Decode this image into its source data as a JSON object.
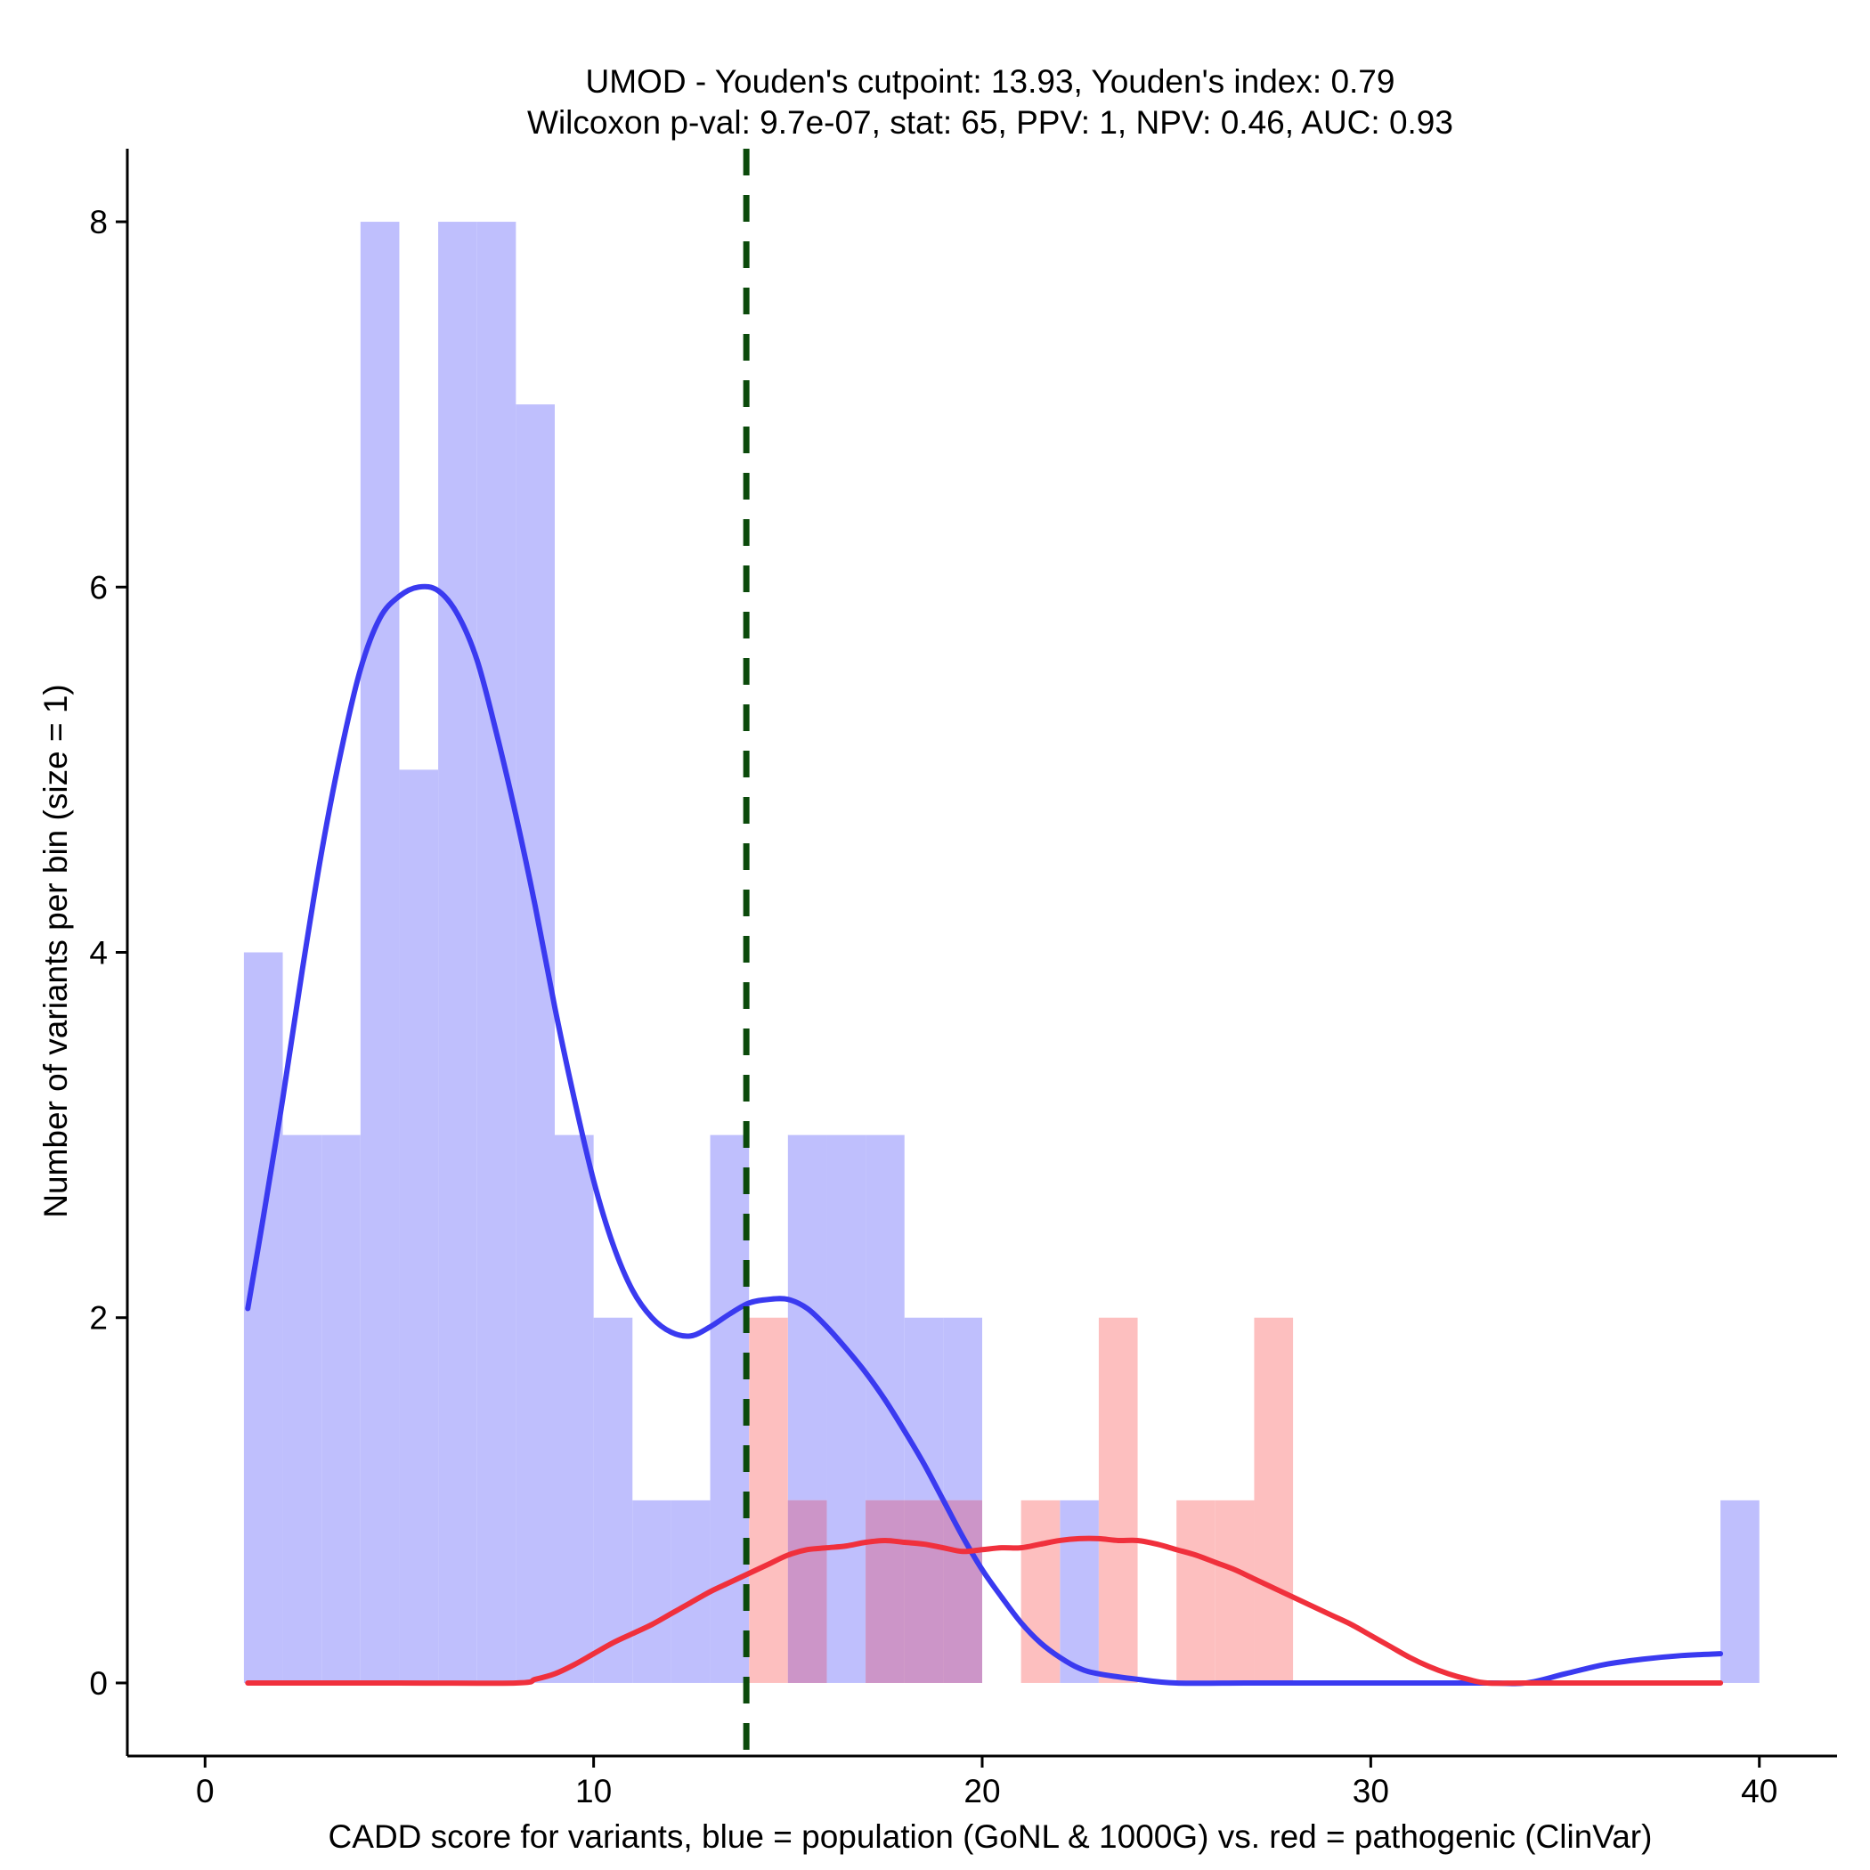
{
  "chart_data": {
    "type": "histogram",
    "title_line1": "UMOD - Youden's cutpoint: 13.93, Youden's index: 0.79",
    "title_line2": "Wilcoxon p-val: 9.7e-07, stat: 65, PPV: 1, NPV: 0.46, AUC: 0.93",
    "xlabel": "CADD score for variants, blue = population (GoNL & 1000G) vs. red = pathogenic (ClinVar)",
    "ylabel": "Number of variants per bin (size = 1)",
    "xlim": [
      -2.0,
      42.0
    ],
    "ylim": [
      -0.4,
      8.4
    ],
    "x_ticks": [
      0,
      10,
      20,
      30,
      40
    ],
    "y_ticks": [
      0,
      2,
      4,
      6,
      8
    ],
    "bin_width": 1,
    "cutpoint": 13.93,
    "colors": {
      "population_bar": "#bfbffd",
      "pathogenic_bar": "#fdbfbf",
      "overlap_bar": "#cc95c8",
      "population_line": "#3a3af0",
      "pathogenic_line": "#f0303c",
      "cutpoint_line": "#0b4a0b"
    },
    "series": [
      {
        "name": "population (GoNL & 1000G)",
        "bins": [
          {
            "start": 1,
            "count": 4
          },
          {
            "start": 2,
            "count": 3
          },
          {
            "start": 3,
            "count": 3
          },
          {
            "start": 4,
            "count": 8
          },
          {
            "start": 5,
            "count": 5
          },
          {
            "start": 6,
            "count": 8
          },
          {
            "start": 7,
            "count": 8
          },
          {
            "start": 8,
            "count": 7
          },
          {
            "start": 9,
            "count": 3
          },
          {
            "start": 10,
            "count": 2
          },
          {
            "start": 11,
            "count": 1
          },
          {
            "start": 12,
            "count": 1
          },
          {
            "start": 13,
            "count": 3
          },
          {
            "start": 15,
            "count": 3
          },
          {
            "start": 16,
            "count": 3
          },
          {
            "start": 17,
            "count": 3
          },
          {
            "start": 18,
            "count": 2
          },
          {
            "start": 19,
            "count": 2
          },
          {
            "start": 22,
            "count": 1
          },
          {
            "start": 39,
            "count": 1
          }
        ]
      },
      {
        "name": "pathogenic (ClinVar)",
        "bins": [
          {
            "start": 14,
            "count": 2
          },
          {
            "start": 15,
            "count": 1
          },
          {
            "start": 17,
            "count": 1
          },
          {
            "start": 18,
            "count": 1
          },
          {
            "start": 19,
            "count": 1
          },
          {
            "start": 21,
            "count": 1
          },
          {
            "start": 23,
            "count": 2
          },
          {
            "start": 25,
            "count": 1
          },
          {
            "start": 26,
            "count": 1
          },
          {
            "start": 27,
            "count": 2
          }
        ]
      }
    ],
    "density_lines": [
      {
        "name": "population density",
        "points": [
          [
            1.1,
            2.05
          ],
          [
            1.5,
            2.55
          ],
          [
            2,
            3.2
          ],
          [
            2.5,
            3.9
          ],
          [
            3,
            4.55
          ],
          [
            3.5,
            5.1
          ],
          [
            4,
            5.55
          ],
          [
            4.5,
            5.83
          ],
          [
            5,
            5.95
          ],
          [
            5.5,
            6.0
          ],
          [
            6,
            5.98
          ],
          [
            6.5,
            5.85
          ],
          [
            7,
            5.6
          ],
          [
            7.5,
            5.2
          ],
          [
            8,
            4.75
          ],
          [
            8.5,
            4.25
          ],
          [
            9,
            3.7
          ],
          [
            9.5,
            3.2
          ],
          [
            10,
            2.75
          ],
          [
            10.5,
            2.4
          ],
          [
            11,
            2.15
          ],
          [
            11.5,
            2.0
          ],
          [
            12,
            1.92
          ],
          [
            12.5,
            1.9
          ],
          [
            13,
            1.95
          ],
          [
            13.5,
            2.02
          ],
          [
            14,
            2.08
          ],
          [
            14.5,
            2.1
          ],
          [
            15,
            2.1
          ],
          [
            15.5,
            2.05
          ],
          [
            16,
            1.95
          ],
          [
            16.5,
            1.83
          ],
          [
            17,
            1.7
          ],
          [
            17.5,
            1.55
          ],
          [
            18,
            1.38
          ],
          [
            18.5,
            1.2
          ],
          [
            19,
            1.0
          ],
          [
            19.5,
            0.8
          ],
          [
            20,
            0.62
          ],
          [
            20.5,
            0.47
          ],
          [
            21,
            0.33
          ],
          [
            21.5,
            0.22
          ],
          [
            22,
            0.14
          ],
          [
            22.5,
            0.08
          ],
          [
            23,
            0.05
          ],
          [
            24,
            0.02
          ],
          [
            25,
            0.0
          ],
          [
            27,
            0.0
          ],
          [
            30,
            0.0
          ],
          [
            33,
            0.0
          ],
          [
            34,
            0.0
          ],
          [
            35,
            0.05
          ],
          [
            36,
            0.1
          ],
          [
            37,
            0.13
          ],
          [
            38,
            0.15
          ],
          [
            39,
            0.16
          ]
        ]
      },
      {
        "name": "pathogenic density",
        "points": [
          [
            1.1,
            0.0
          ],
          [
            5,
            0.0
          ],
          [
            8,
            0.0
          ],
          [
            8.5,
            0.02
          ],
          [
            9,
            0.05
          ],
          [
            9.5,
            0.1
          ],
          [
            10,
            0.16
          ],
          [
            10.5,
            0.22
          ],
          [
            11,
            0.27
          ],
          [
            11.5,
            0.32
          ],
          [
            12,
            0.38
          ],
          [
            12.5,
            0.44
          ],
          [
            13,
            0.5
          ],
          [
            13.5,
            0.55
          ],
          [
            14,
            0.6
          ],
          [
            14.5,
            0.65
          ],
          [
            15,
            0.7
          ],
          [
            15.5,
            0.73
          ],
          [
            16,
            0.74
          ],
          [
            16.5,
            0.75
          ],
          [
            17,
            0.77
          ],
          [
            17.5,
            0.78
          ],
          [
            18,
            0.77
          ],
          [
            18.5,
            0.76
          ],
          [
            19,
            0.74
          ],
          [
            19.5,
            0.72
          ],
          [
            20,
            0.73
          ],
          [
            20.5,
            0.74
          ],
          [
            21,
            0.74
          ],
          [
            21.5,
            0.76
          ],
          [
            22,
            0.78
          ],
          [
            22.5,
            0.79
          ],
          [
            23,
            0.79
          ],
          [
            23.5,
            0.78
          ],
          [
            24,
            0.78
          ],
          [
            24.5,
            0.76
          ],
          [
            25,
            0.73
          ],
          [
            25.5,
            0.7
          ],
          [
            26,
            0.66
          ],
          [
            26.5,
            0.62
          ],
          [
            27,
            0.57
          ],
          [
            27.5,
            0.52
          ],
          [
            28,
            0.47
          ],
          [
            28.5,
            0.42
          ],
          [
            29,
            0.37
          ],
          [
            29.5,
            0.32
          ],
          [
            30,
            0.26
          ],
          [
            30.5,
            0.2
          ],
          [
            31,
            0.14
          ],
          [
            31.5,
            0.09
          ],
          [
            32,
            0.05
          ],
          [
            32.5,
            0.02
          ],
          [
            33,
            0.0
          ],
          [
            34,
            0.0
          ],
          [
            36,
            0.0
          ],
          [
            39,
            0.0
          ]
        ]
      }
    ]
  }
}
